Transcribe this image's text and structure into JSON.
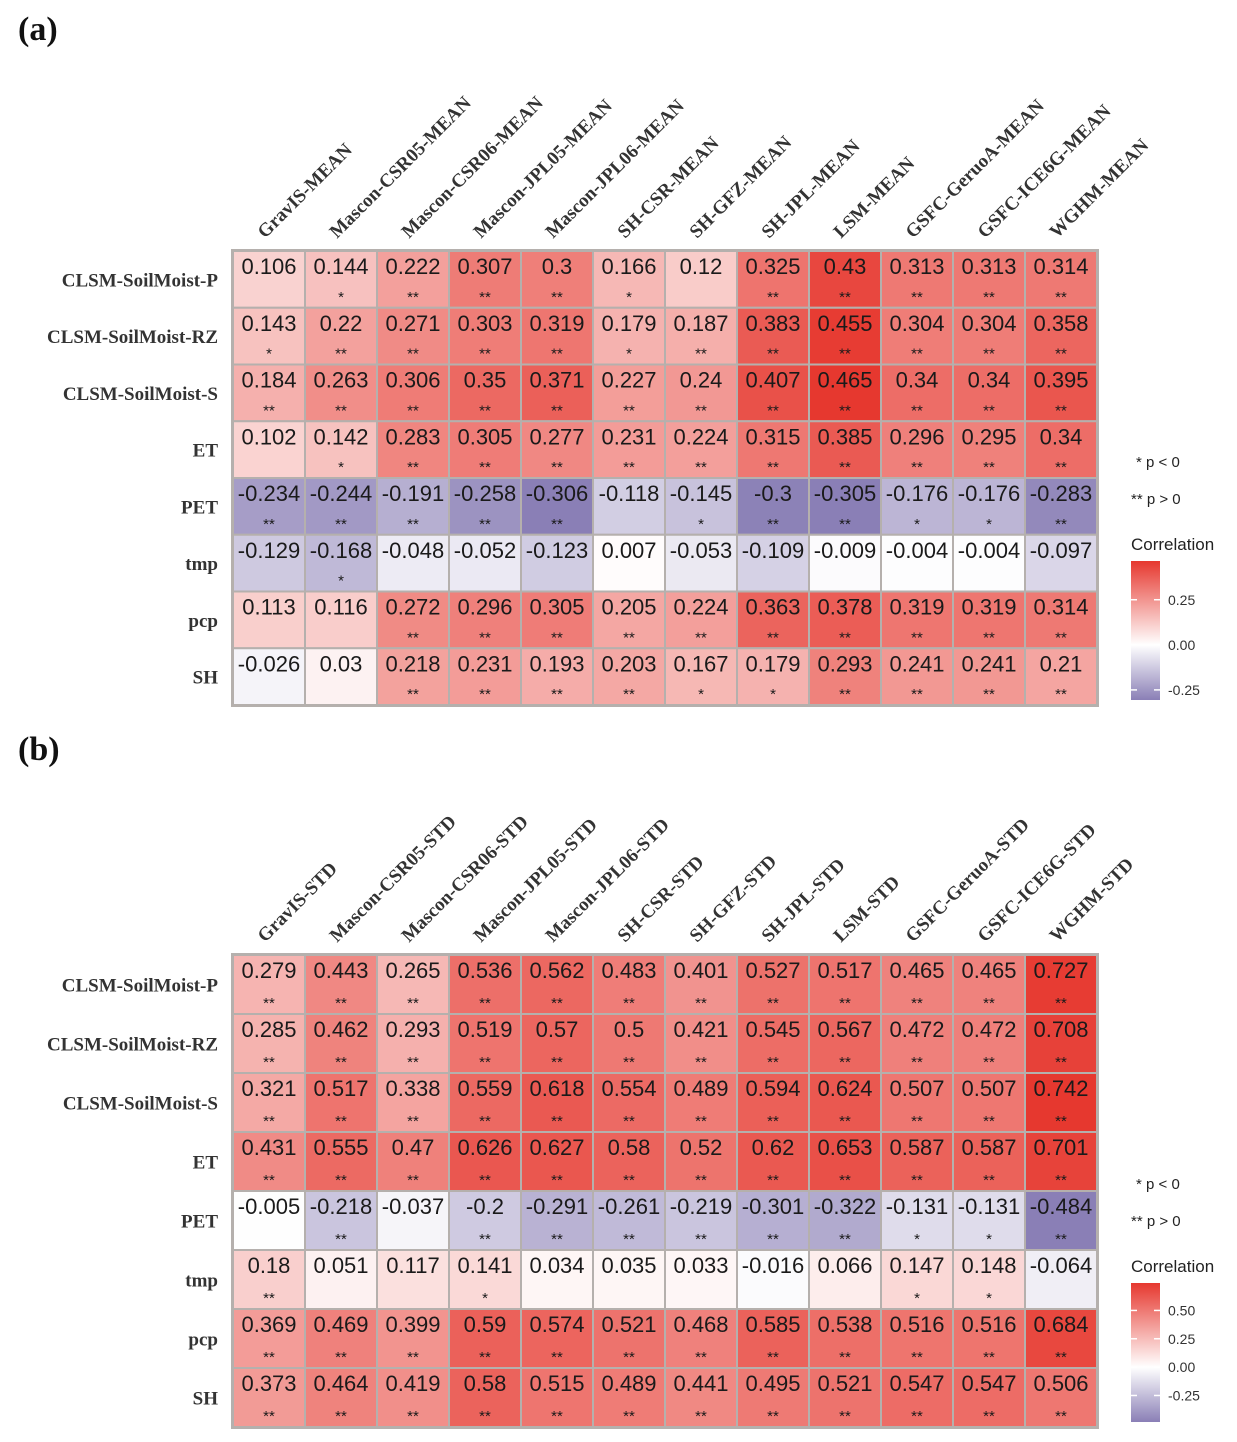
{
  "chart_data": [
    {
      "type": "heatmap",
      "panel_label": "(a)",
      "columns": [
        "GravIS-MEAN",
        "Mascon-CSR05-MEAN",
        "Mascon-CSR06-MEAN",
        "Mascon-JPL05-MEAN",
        "Mascon-JPL06-MEAN",
        "SH-CSR-MEAN",
        "SH-GFZ-MEAN",
        "SH-JPL-MEAN",
        "LSM-MEAN",
        "GSFC-GeruoA-MEAN",
        "GSFC-ICE6G-MEAN",
        "WGHM-MEAN"
      ],
      "rows": [
        "CLSM-SoilMoist-P",
        "CLSM-SoilMoist-RZ",
        "CLSM-SoilMoist-S",
        "ET",
        "PET",
        "tmp",
        "pcp",
        "SH"
      ],
      "values": [
        [
          0.106,
          0.144,
          0.222,
          0.307,
          0.3,
          0.166,
          0.12,
          0.325,
          0.43,
          0.313,
          0.313,
          0.314
        ],
        [
          0.143,
          0.22,
          0.271,
          0.303,
          0.319,
          0.179,
          0.187,
          0.383,
          0.455,
          0.304,
          0.304,
          0.358
        ],
        [
          0.184,
          0.263,
          0.306,
          0.35,
          0.371,
          0.227,
          0.24,
          0.407,
          0.465,
          0.34,
          0.34,
          0.395
        ],
        [
          0.102,
          0.142,
          0.283,
          0.305,
          0.277,
          0.231,
          0.224,
          0.315,
          0.385,
          0.296,
          0.295,
          0.34
        ],
        [
          -0.234,
          -0.244,
          -0.191,
          -0.258,
          -0.306,
          -0.118,
          -0.145,
          -0.3,
          -0.305,
          -0.176,
          -0.176,
          -0.283
        ],
        [
          -0.129,
          -0.168,
          -0.048,
          -0.052,
          -0.123,
          0.007,
          -0.053,
          -0.109,
          -0.009,
          -0.004,
          -0.004,
          -0.097
        ],
        [
          0.113,
          0.116,
          0.272,
          0.296,
          0.305,
          0.205,
          0.224,
          0.363,
          0.378,
          0.319,
          0.319,
          0.314
        ],
        [
          -0.026,
          0.03,
          0.218,
          0.231,
          0.193,
          0.203,
          0.167,
          0.179,
          0.293,
          0.241,
          0.241,
          0.21
        ]
      ],
      "significance": [
        [
          "",
          "*",
          "**",
          "**",
          "**",
          "*",
          "",
          "**",
          "**",
          "**",
          "**",
          "**"
        ],
        [
          "*",
          "**",
          "**",
          "**",
          "**",
          "*",
          "**",
          "**",
          "**",
          "**",
          "**",
          "**"
        ],
        [
          "**",
          "**",
          "**",
          "**",
          "**",
          "**",
          "**",
          "**",
          "**",
          "**",
          "**",
          "**"
        ],
        [
          "",
          "*",
          "**",
          "**",
          "**",
          "**",
          "**",
          "**",
          "**",
          "**",
          "**",
          "**"
        ],
        [
          "**",
          "**",
          "**",
          "**",
          "**",
          "",
          "*",
          "**",
          "**",
          "*",
          "*",
          "**"
        ],
        [
          "",
          "*",
          "",
          "",
          "",
          "",
          "",
          "",
          "",
          "",
          "",
          ""
        ],
        [
          "",
          "",
          "**",
          "**",
          "**",
          "**",
          "**",
          "**",
          "**",
          "**",
          "**",
          "**"
        ],
        [
          "",
          "",
          "**",
          "**",
          "**",
          "**",
          "*",
          "*",
          "**",
          "**",
          "**",
          "**"
        ]
      ],
      "legend": {
        "sig_labels": [
          "* p < 0",
          "** p > 0"
        ],
        "title": "Correlation",
        "ticks": [
          0.25,
          0.0,
          -0.25
        ],
        "tick_labels": [
          "0.25",
          "0.00",
          "-0.25"
        ],
        "range": [
          -0.306,
          0.465
        ]
      }
    },
    {
      "type": "heatmap",
      "panel_label": "(b)",
      "columns": [
        "GravIS-STD",
        "Mascon-CSR05-STD",
        "Mascon-CSR06-STD",
        "Mascon-JPL05-STD",
        "Mascon-JPL06-STD",
        "SH-CSR-STD",
        "SH-GFZ-STD",
        "SH-JPL-STD",
        "LSM-STD",
        "GSFC-GeruoA-STD",
        "GSFC-ICE6G-STD",
        "WGHM-STD"
      ],
      "rows": [
        "CLSM-SoilMoist-P",
        "CLSM-SoilMoist-RZ",
        "CLSM-SoilMoist-S",
        "ET",
        "PET",
        "tmp",
        "pcp",
        "SH"
      ],
      "values": [
        [
          0.279,
          0.443,
          0.265,
          0.536,
          0.562,
          0.483,
          0.401,
          0.527,
          0.517,
          0.465,
          0.465,
          0.727
        ],
        [
          0.285,
          0.462,
          0.293,
          0.519,
          0.57,
          0.5,
          0.421,
          0.545,
          0.567,
          0.472,
          0.472,
          0.708
        ],
        [
          0.321,
          0.517,
          0.338,
          0.559,
          0.618,
          0.554,
          0.489,
          0.594,
          0.624,
          0.507,
          0.507,
          0.742
        ],
        [
          0.431,
          0.555,
          0.47,
          0.626,
          0.627,
          0.58,
          0.52,
          0.62,
          0.653,
          0.587,
          0.587,
          0.701
        ],
        [
          -0.005,
          -0.218,
          -0.037,
          -0.2,
          -0.291,
          -0.261,
          -0.219,
          -0.301,
          -0.322,
          -0.131,
          -0.131,
          -0.484
        ],
        [
          0.18,
          0.051,
          0.117,
          0.141,
          0.034,
          0.035,
          0.033,
          -0.016,
          0.066,
          0.147,
          0.148,
          -0.064
        ],
        [
          0.369,
          0.469,
          0.399,
          0.59,
          0.574,
          0.521,
          0.468,
          0.585,
          0.538,
          0.516,
          0.516,
          0.684
        ],
        [
          0.373,
          0.464,
          0.419,
          0.58,
          0.515,
          0.489,
          0.441,
          0.495,
          0.521,
          0.547,
          0.547,
          0.506
        ]
      ],
      "significance": [
        [
          "**",
          "**",
          "**",
          "**",
          "**",
          "**",
          "**",
          "**",
          "**",
          "**",
          "**",
          "**"
        ],
        [
          "**",
          "**",
          "**",
          "**",
          "**",
          "**",
          "**",
          "**",
          "**",
          "**",
          "**",
          "**"
        ],
        [
          "**",
          "**",
          "**",
          "**",
          "**",
          "**",
          "**",
          "**",
          "**",
          "**",
          "**",
          "**"
        ],
        [
          "**",
          "**",
          "**",
          "**",
          "**",
          "**",
          "**",
          "**",
          "**",
          "**",
          "**",
          "**"
        ],
        [
          "",
          "**",
          "",
          "**",
          "**",
          "**",
          "**",
          "**",
          "**",
          "*",
          "*",
          "**"
        ],
        [
          "**",
          "",
          "",
          "*",
          "",
          "",
          "",
          "",
          "",
          "*",
          "*",
          ""
        ],
        [
          "**",
          "**",
          "**",
          "**",
          "**",
          "**",
          "**",
          "**",
          "**",
          "**",
          "**",
          "**"
        ],
        [
          "**",
          "**",
          "**",
          "**",
          "**",
          "**",
          "**",
          "**",
          "**",
          "**",
          "**",
          "**"
        ]
      ],
      "legend": {
        "sig_labels": [
          "* p < 0",
          "** p > 0"
        ],
        "title": "Correlation",
        "ticks": [
          0.5,
          0.25,
          0.0,
          -0.25
        ],
        "tick_labels": [
          "0.50",
          "0.25",
          "0.00",
          "-0.25"
        ],
        "range": [
          -0.484,
          0.742
        ]
      }
    }
  ],
  "colors": {
    "positive": "#e6382f",
    "zero": "#ffffff",
    "negative": "#8a7fb6",
    "cell_border": "#b5b0ad"
  }
}
